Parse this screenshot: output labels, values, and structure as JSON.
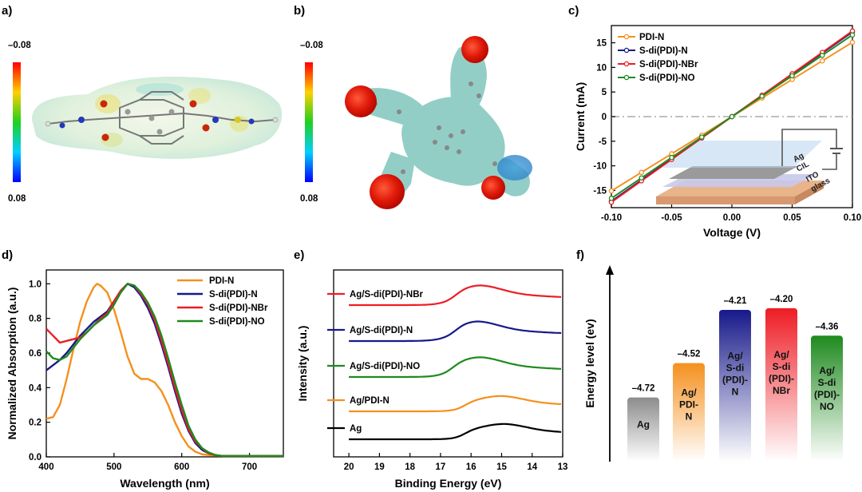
{
  "panels": {
    "a": {
      "label": "a)",
      "scale_max": "–0.08",
      "scale_min": "0.08"
    },
    "b": {
      "label": "b)",
      "scale_max": "–0.08",
      "scale_min": "0.08"
    },
    "c": {
      "label": "c)"
    },
    "d": {
      "label": "d)"
    },
    "e": {
      "label": "e)"
    },
    "f": {
      "label": "f)"
    }
  },
  "colors": {
    "PDI-N": "#f5901e",
    "S-di(PDI)-N": "#17198a",
    "S-di(PDI)-NBr": "#ee1c24",
    "S-di(PDI)-NO": "#1e8a1e",
    "Ag": "#000000"
  },
  "device": {
    "layers": [
      "Ag",
      "CIL",
      "ITO",
      "glass"
    ]
  },
  "chart_data": [
    {
      "id": "c",
      "type": "line",
      "xlabel": "Voltage (V)",
      "ylabel": "Current (mA)",
      "xlim": [
        -0.1,
        0.1
      ],
      "ylim": [
        -18.5,
        18.5
      ],
      "xticks": [
        -0.1,
        -0.05,
        0.0,
        0.05,
        0.1
      ],
      "xtick_labels": [
        "-0.10",
        "-0.05",
        "0.00",
        "0.05",
        "0.10"
      ],
      "yticks": [
        -15,
        -10,
        -5,
        0,
        5,
        10,
        15
      ],
      "ytick_labels": [
        "-15",
        "-10",
        "-5",
        "0",
        "5",
        "10",
        "15"
      ],
      "legend": "top-left",
      "zero_line": true,
      "series": [
        {
          "name": "PDI-N",
          "slope": 151
        },
        {
          "name": "S-di(PDI)-N",
          "slope": 172
        },
        {
          "name": "S-di(PDI)-NBr",
          "slope": 174
        },
        {
          "name": "S-di(PDI)-NO",
          "slope": 166
        }
      ],
      "marker_x": [
        -0.1,
        -0.075,
        -0.05,
        -0.025,
        0.0,
        0.025,
        0.05,
        0.075,
        0.1
      ]
    },
    {
      "id": "d",
      "type": "line",
      "xlabel": "Wavelength (nm)",
      "ylabel": "Normalized Absorption (a.u.)",
      "xlim": [
        400,
        750
      ],
      "ylim": [
        0,
        1.08
      ],
      "xticks": [
        400,
        500,
        600,
        700
      ],
      "xtick_labels": [
        "400",
        "500",
        "600",
        "700"
      ],
      "yticks": [
        0,
        0.2,
        0.4,
        0.6,
        0.8,
        1.0
      ],
      "ytick_labels": [
        "0.0",
        "0.2",
        "0.4",
        "0.6",
        "0.8",
        "1.0"
      ],
      "legend": "top-right",
      "series": [
        {
          "name": "PDI-N",
          "x": [
            400,
            410,
            420,
            430,
            440,
            450,
            460,
            470,
            475,
            480,
            490,
            500,
            510,
            520,
            530,
            540,
            550,
            560,
            570,
            580,
            590,
            600,
            610,
            620,
            630,
            640,
            660,
            700,
            750
          ],
          "y": [
            0.22,
            0.23,
            0.3,
            0.45,
            0.62,
            0.78,
            0.9,
            0.98,
            1.0,
            0.99,
            0.95,
            0.85,
            0.72,
            0.58,
            0.48,
            0.45,
            0.45,
            0.43,
            0.38,
            0.3,
            0.2,
            0.12,
            0.06,
            0.03,
            0.015,
            0.01,
            0.005,
            0.005,
            0.005
          ]
        },
        {
          "name": "S-di(PDI)-N",
          "x": [
            400,
            410,
            420,
            430,
            440,
            450,
            460,
            470,
            480,
            490,
            500,
            510,
            520,
            530,
            540,
            550,
            560,
            570,
            580,
            590,
            600,
            610,
            620,
            630,
            640,
            650,
            660,
            700,
            750
          ],
          "y": [
            0.5,
            0.53,
            0.56,
            0.6,
            0.65,
            0.7,
            0.74,
            0.78,
            0.81,
            0.84,
            0.9,
            0.96,
            1.0,
            0.98,
            0.93,
            0.86,
            0.77,
            0.65,
            0.52,
            0.38,
            0.25,
            0.15,
            0.08,
            0.04,
            0.02,
            0.01,
            0.005,
            0.005,
            0.005
          ]
        },
        {
          "name": "S-di(PDI)-NBr",
          "x": [
            400,
            410,
            420,
            430,
            440,
            450,
            460,
            470,
            480,
            490,
            500,
            510,
            520,
            530,
            540,
            550,
            560,
            570,
            580,
            590,
            600,
            610,
            620,
            630,
            640,
            650,
            660,
            700,
            750
          ],
          "y": [
            0.74,
            0.7,
            0.66,
            0.67,
            0.68,
            0.69,
            0.72,
            0.76,
            0.8,
            0.83,
            0.9,
            0.96,
            1.0,
            0.99,
            0.94,
            0.88,
            0.79,
            0.67,
            0.54,
            0.4,
            0.27,
            0.16,
            0.09,
            0.05,
            0.02,
            0.01,
            0.005,
            0.005,
            0.005
          ]
        },
        {
          "name": "S-di(PDI)-NO",
          "x": [
            400,
            410,
            420,
            430,
            440,
            450,
            460,
            470,
            480,
            490,
            500,
            510,
            520,
            530,
            540,
            550,
            560,
            570,
            580,
            590,
            600,
            610,
            620,
            630,
            640,
            650,
            660,
            700,
            750
          ],
          "y": [
            0.61,
            0.57,
            0.56,
            0.58,
            0.63,
            0.68,
            0.72,
            0.76,
            0.79,
            0.82,
            0.88,
            0.95,
            1.0,
            0.99,
            0.95,
            0.89,
            0.81,
            0.7,
            0.57,
            0.43,
            0.3,
            0.18,
            0.1,
            0.05,
            0.025,
            0.01,
            0.005,
            0.005,
            0.005
          ]
        }
      ]
    },
    {
      "id": "e",
      "type": "line",
      "xlabel": "Binding Energy (eV)",
      "ylabel": "Intensity (a.u.)",
      "xlim": [
        20.5,
        13
      ],
      "xticks": [
        20,
        19,
        18,
        17,
        16,
        15,
        14,
        13
      ],
      "xtick_labels": [
        "20",
        "19",
        "18",
        "17",
        "16",
        "15",
        "14",
        "13"
      ],
      "series": [
        {
          "name": "Ag/S-di(PDI)-NBr",
          "color_key": "S-di(PDI)-NBr",
          "offset": 4,
          "edge": 16.5,
          "peak": 15.7,
          "height": 0.62
        },
        {
          "name": "Ag/S-di(PDI)-N",
          "color_key": "S-di(PDI)-N",
          "offset": 3,
          "edge": 16.5,
          "peak": 15.8,
          "height": 0.62
        },
        {
          "name": "Ag/S-di(PDI)-NO",
          "color_key": "S-di(PDI)-NO",
          "offset": 2,
          "edge": 16.6,
          "peak": 15.7,
          "height": 0.62
        },
        {
          "name": "Ag/PDI-N",
          "color_key": "PDI-N",
          "offset": 1,
          "edge": 16.2,
          "peak": 15.0,
          "height": 0.48
        },
        {
          "name": "Ag",
          "color_key": "Ag",
          "offset": 0,
          "edge": 16.2,
          "peak": 14.9,
          "height": 0.48
        }
      ]
    },
    {
      "id": "f",
      "type": "bar",
      "ylabel": "Energy level (ev)",
      "bars": [
        {
          "value": -4.72,
          "label": "–4.72",
          "text": [
            "Ag"
          ],
          "color": "#8c8c8c"
        },
        {
          "value": -4.52,
          "label": "–4.52",
          "text": [
            "Ag/",
            "PDI-",
            "N"
          ],
          "color": "#f5901e"
        },
        {
          "value": -4.21,
          "label": "–4.21",
          "text": [
            "Ag/",
            "S-di",
            "(PDI)-",
            "N"
          ],
          "color": "#17198a"
        },
        {
          "value": -4.2,
          "label": "–4.20",
          "text": [
            "Ag/",
            "S-di",
            "(PDI)-",
            "NBr"
          ],
          "color": "#ee1c24"
        },
        {
          "value": -4.36,
          "label": "–4.36",
          "text": [
            "Ag/",
            "S-di",
            "(PDI)-",
            "NO"
          ],
          "color": "#1e8a1e"
        }
      ]
    }
  ]
}
